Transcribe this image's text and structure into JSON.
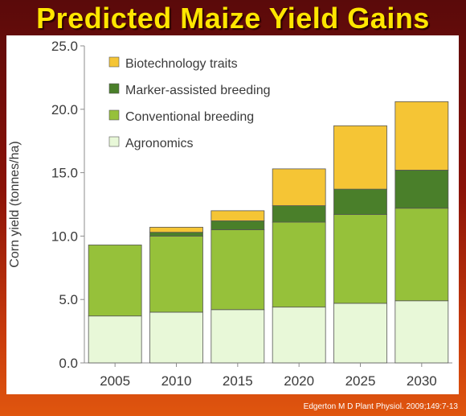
{
  "page": {
    "title": "Predicted Maize Yield Gains"
  },
  "citation": "Edgerton M D Plant Physiol. 2009;149:7-13",
  "chart_data": {
    "type": "bar",
    "stacked": true,
    "categories": [
      "2005",
      "2010",
      "2015",
      "2020",
      "2025",
      "2030"
    ],
    "series": [
      {
        "name": "Agronomics",
        "color": "#e8f8d8",
        "values": [
          3.7,
          4.0,
          4.2,
          4.4,
          4.7,
          4.9
        ]
      },
      {
        "name": "Conventional breeding",
        "color": "#96c13a",
        "values": [
          5.6,
          6.0,
          6.3,
          6.7,
          7.0,
          7.3
        ]
      },
      {
        "name": "Marker-assisted breeding",
        "color": "#4a7f2a",
        "values": [
          0.0,
          0.3,
          0.7,
          1.3,
          2.0,
          3.0
        ]
      },
      {
        "name": "Biotechnology traits",
        "color": "#f5c535",
        "values": [
          0.0,
          0.4,
          0.8,
          2.9,
          5.0,
          5.4
        ]
      }
    ],
    "ylabel": "Corn yield (tonnes/ha)",
    "xlabel": "",
    "ylim": [
      0,
      25
    ],
    "yticks": [
      "0.0",
      "5.0",
      "10.0",
      "15.0",
      "20.0",
      "25.0"
    ],
    "grid": false,
    "legend_position": "top-left"
  }
}
